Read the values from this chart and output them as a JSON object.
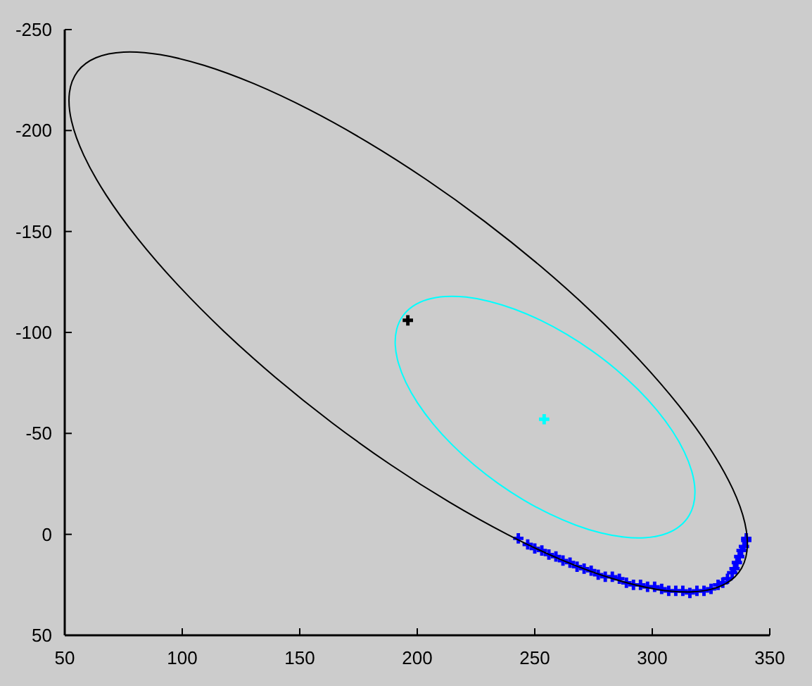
{
  "chart_data": {
    "type": "scatter",
    "marker": "cross",
    "xlim": [
      50,
      350
    ],
    "xticks": [
      50,
      100,
      150,
      200,
      250,
      300,
      350
    ],
    "ylim": [
      50,
      -250
    ],
    "yticks": [
      -250,
      -200,
      -150,
      -100,
      -50,
      0,
      50
    ],
    "series": [
      {
        "color": "#0000ff",
        "x": [
          243,
          247,
          250,
          253,
          256,
          259,
          262,
          265,
          268,
          271,
          274,
          277,
          280,
          283,
          286,
          289,
          292,
          295,
          298,
          301,
          304,
          307,
          310,
          313,
          316,
          319,
          322,
          325,
          328,
          330,
          332,
          334,
          335,
          336,
          337,
          338,
          339,
          340,
          340
        ],
        "values": [
          2,
          5,
          7,
          8,
          10,
          11,
          13,
          14,
          16,
          17,
          18,
          20,
          21,
          21,
          22,
          24,
          25,
          25,
          26,
          26,
          27,
          28,
          28,
          28,
          29,
          28,
          28,
          27,
          25,
          24,
          22,
          19,
          17,
          14,
          11,
          8,
          6,
          3,
          2
        ]
      },
      {
        "color": "#000000",
        "x": [
          196
        ],
        "values": [
          -106
        ]
      },
      {
        "color": "#00ffff",
        "x": [
          254
        ],
        "values": [
          -57
        ]
      }
    ]
  }
}
